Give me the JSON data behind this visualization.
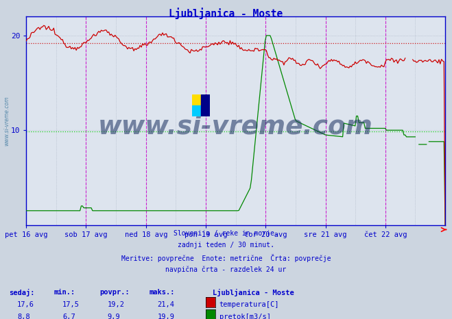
{
  "title": "Ljubljanica - Moste",
  "title_color": "#0000cc",
  "bg_color": "#ccd5e0",
  "plot_bg_color": "#dde4ee",
  "grid_color": "#aab4c4",
  "xlabel_days": [
    "pet 16 avg",
    "sob 17 avg",
    "ned 18 avg",
    "pon 19 avg",
    "tor 20 avg",
    "sre 21 avg",
    "čet 22 avg"
  ],
  "ylim": [
    0,
    22
  ],
  "ylim_display": [
    0,
    22
  ],
  "ytick_vals": [
    10,
    20
  ],
  "avg_temp": 19.2,
  "avg_flow": 9.9,
  "watermark_text": "www.si-vreme.com",
  "watermark_color": "#1a3060",
  "info_lines": [
    "Slovenija / reke in morje.",
    "zadnji teden / 30 minut.",
    "Meritve: povprečne  Enote: metrične  Črta: povprečje",
    "navpična črta - razdelek 24 ur"
  ],
  "legend_station": "Ljubljanica - Moste",
  "legend_items": [
    {
      "label": "temperatura[C]",
      "color": "#cc0000"
    },
    {
      "label": "pretok[m3/s]",
      "color": "#008800"
    }
  ],
  "stats_headers": [
    "sedaj:",
    "min.:",
    "povpr.:",
    "maks.:"
  ],
  "stats_temp": [
    "17,6",
    "17,5",
    "19,2",
    "21,4"
  ],
  "stats_flow": [
    "8,8",
    "6,7",
    "9,9",
    "19,9"
  ],
  "vline_color": "#cc00cc",
  "temp_color": "#cc0000",
  "flow_color": "#008800",
  "hline_temp_color": "#cc0000",
  "hline_flow_color": "#00cc00",
  "axis_color": "#0000cc",
  "tick_color": "#0000cc",
  "side_label_color": "#5588aa",
  "n_days": 7,
  "n_per_day": 48
}
